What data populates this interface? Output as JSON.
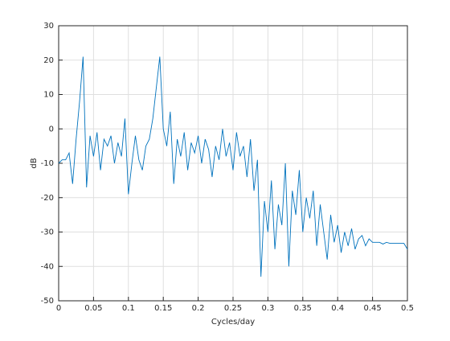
{
  "chart_data": {
    "type": "line",
    "xlabel": "Cycles/day",
    "ylabel": "dB",
    "x": [
      0,
      0.005,
      0.01,
      0.015,
      0.02,
      0.025,
      0.03,
      0.035,
      0.04,
      0.045,
      0.05,
      0.055,
      0.06,
      0.065,
      0.07,
      0.075,
      0.08,
      0.085,
      0.09,
      0.095,
      0.1,
      0.105,
      0.11,
      0.115,
      0.12,
      0.125,
      0.13,
      0.135,
      0.14,
      0.145,
      0.15,
      0.155,
      0.16,
      0.165,
      0.17,
      0.175,
      0.18,
      0.185,
      0.19,
      0.195,
      0.2,
      0.205,
      0.21,
      0.215,
      0.22,
      0.225,
      0.23,
      0.235,
      0.24,
      0.245,
      0.25,
      0.255,
      0.26,
      0.265,
      0.27,
      0.275,
      0.28,
      0.285,
      0.29,
      0.295,
      0.3,
      0.305,
      0.31,
      0.315,
      0.32,
      0.325,
      0.33,
      0.335,
      0.34,
      0.345,
      0.35,
      0.355,
      0.36,
      0.365,
      0.37,
      0.375,
      0.38,
      0.385,
      0.39,
      0.395,
      0.4,
      0.405,
      0.41,
      0.415,
      0.42,
      0.425,
      0.43,
      0.435,
      0.44,
      0.445,
      0.45,
      0.455,
      0.46,
      0.465,
      0.47,
      0.475,
      0.48,
      0.485,
      0.49,
      0.495,
      0.5
    ],
    "series": [
      {
        "name": "dB",
        "color": "#0072bd",
        "values": [
          -10,
          -9,
          -9,
          -7,
          -16,
          -3,
          8,
          21,
          -17,
          -2,
          -8,
          -1,
          -12,
          -3,
          -5,
          -2,
          -10,
          -4,
          -8,
          3,
          -19,
          -10,
          -2,
          -9,
          -12,
          -5,
          -3,
          3,
          12,
          21,
          0,
          -5,
          5,
          -16,
          -3,
          -8,
          -1,
          -12,
          -4,
          -7,
          -2,
          -10,
          -3,
          -6,
          -14,
          -5,
          -9,
          0,
          -8,
          -4,
          -12,
          -1,
          -8,
          -5,
          -14,
          -3,
          -18,
          -9,
          -43,
          -21,
          -30,
          -15,
          -35,
          -22,
          -28,
          -10,
          -40,
          -18,
          -25,
          -12,
          -30,
          -20,
          -26,
          -18,
          -34,
          -22,
          -30,
          -38,
          -25,
          -33,
          -28,
          -36,
          -30,
          -34,
          -29,
          -35,
          -32,
          -31,
          -34,
          -32,
          -33,
          -33,
          -33,
          -33.5,
          -33,
          -33.3,
          -33.3,
          -33.3,
          -33.3,
          -33.3,
          -35
        ]
      }
    ],
    "xlim": [
      0,
      0.5
    ],
    "xticks": [
      0,
      0.05,
      0.1,
      0.15,
      0.2,
      0.25,
      0.3,
      0.35,
      0.4,
      0.45,
      0.5
    ],
    "ylim": [
      -50,
      30
    ],
    "yticks": [
      -50,
      -40,
      -30,
      -20,
      -10,
      0,
      10,
      20,
      30
    ],
    "grid": true
  }
}
